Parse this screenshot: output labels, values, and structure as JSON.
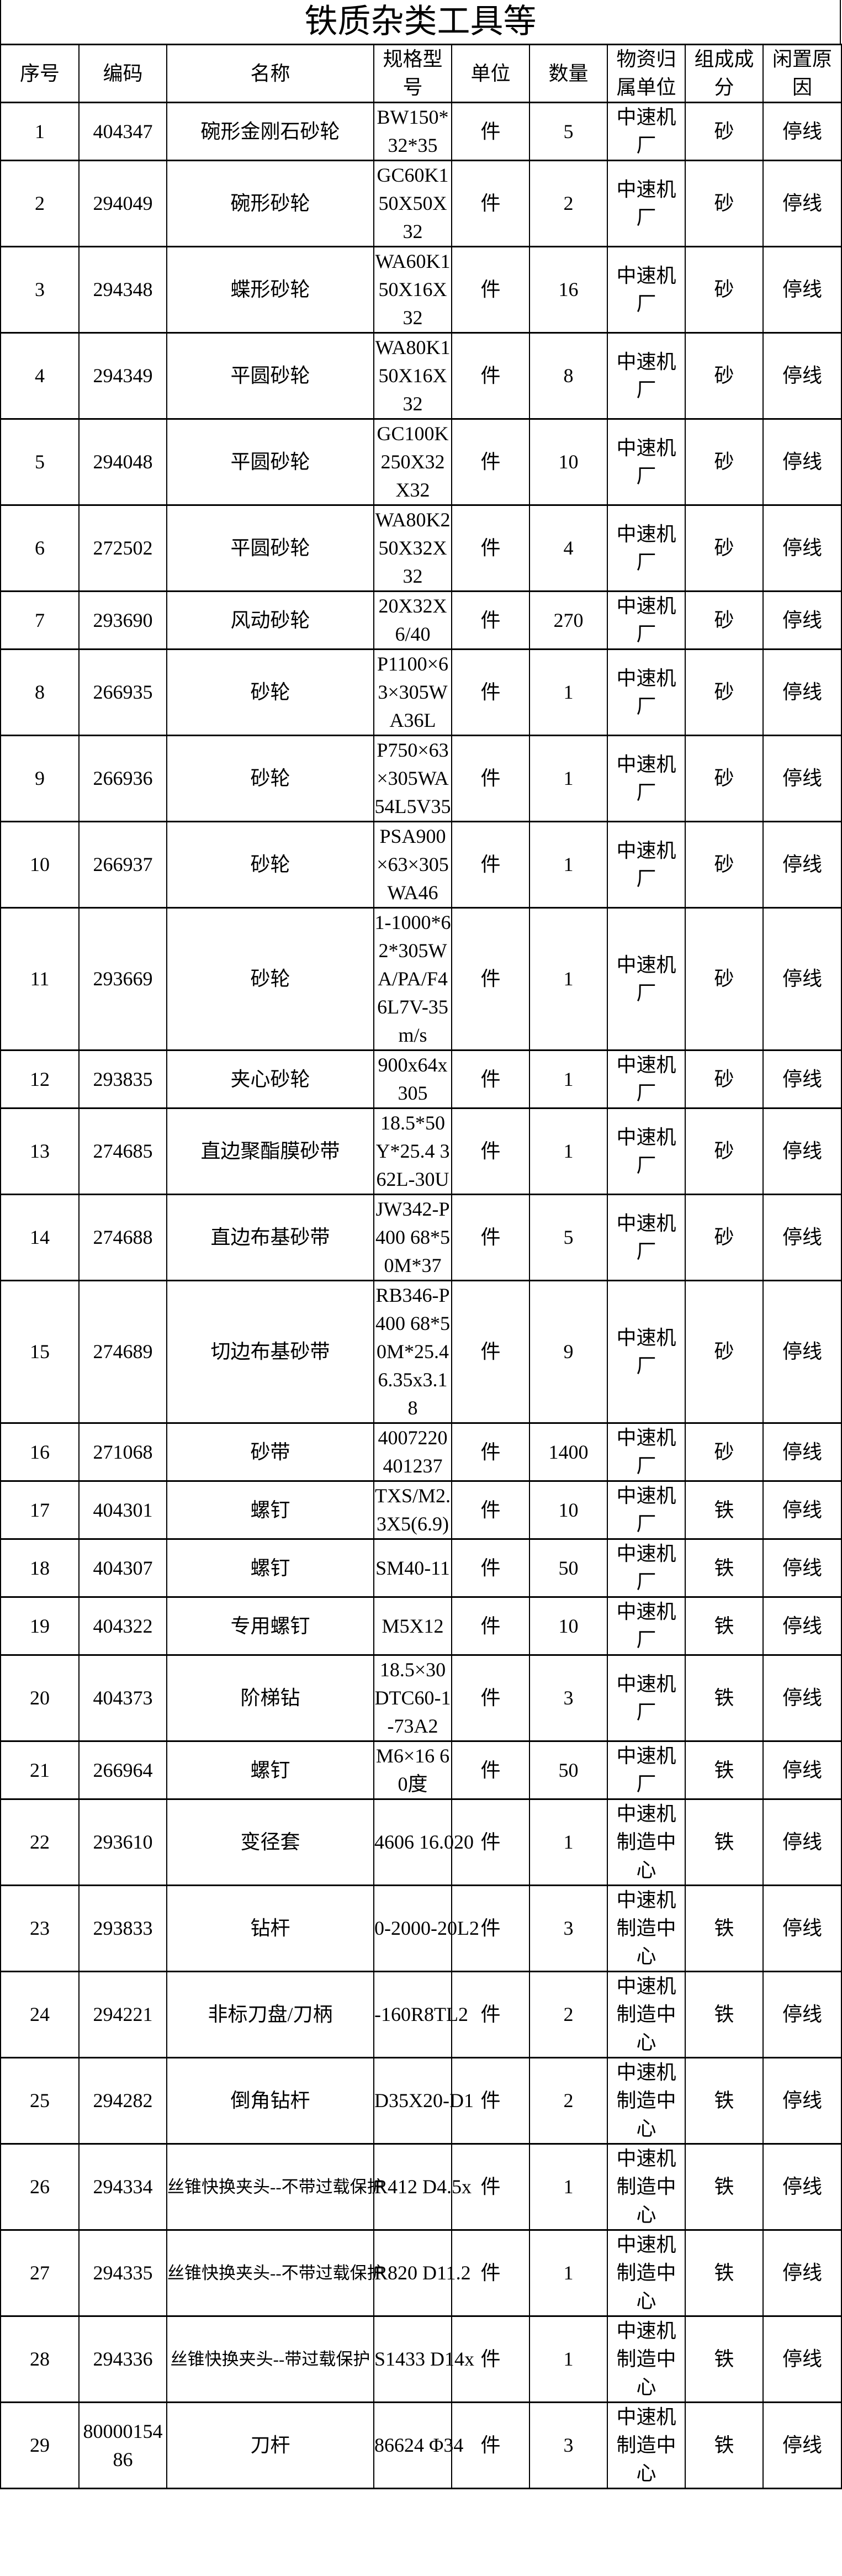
{
  "title": "铁质杂类工具等",
  "headers": [
    "序号",
    "编码",
    "名称",
    "规格型号",
    "单位",
    "数量",
    "物资归属单位",
    "组成成分",
    "闲置原因"
  ],
  "rows": [
    {
      "no": "1",
      "code": "404347",
      "name": "碗形金刚石砂轮",
      "spec": "BW150*32*35",
      "unit": "件",
      "qty": "5",
      "dept": "中速机厂",
      "material": "砂",
      "reason": "停线"
    },
    {
      "no": "2",
      "code": "294049",
      "name": "碗形砂轮",
      "spec": "GC60K150X50X32",
      "unit": "件",
      "qty": "2",
      "dept": "中速机厂",
      "material": "砂",
      "reason": "停线"
    },
    {
      "no": "3",
      "code": "294348",
      "name": "蝶形砂轮",
      "spec": "WA60K150X16X32",
      "unit": "件",
      "qty": "16",
      "dept": "中速机厂",
      "material": "砂",
      "reason": "停线"
    },
    {
      "no": "4",
      "code": "294349",
      "name": "平圆砂轮",
      "spec": "WA80K150X16X32",
      "unit": "件",
      "qty": "8",
      "dept": "中速机厂",
      "material": "砂",
      "reason": "停线"
    },
    {
      "no": "5",
      "code": "294048",
      "name": "平圆砂轮",
      "spec": "GC100K250X32X32",
      "unit": "件",
      "qty": "10",
      "dept": "中速机厂",
      "material": "砂",
      "reason": "停线"
    },
    {
      "no": "6",
      "code": "272502",
      "name": "平圆砂轮",
      "spec": "WA80K250X32X32",
      "unit": "件",
      "qty": "4",
      "dept": "中速机厂",
      "material": "砂",
      "reason": "停线"
    },
    {
      "no": "7",
      "code": "293690",
      "name": "风动砂轮",
      "spec": "20X32X6/40",
      "unit": "件",
      "qty": "270",
      "dept": "中速机厂",
      "material": "砂",
      "reason": "停线"
    },
    {
      "no": "8",
      "code": "266935",
      "name": "砂轮",
      "spec": "P1100×63×305WA36L",
      "unit": "件",
      "qty": "1",
      "dept": "中速机厂",
      "material": "砂",
      "reason": "停线"
    },
    {
      "no": "9",
      "code": "266936",
      "name": "砂轮",
      "spec": "P750×63×305WA54L5V35",
      "unit": "件",
      "qty": "1",
      "dept": "中速机厂",
      "material": "砂",
      "reason": "停线"
    },
    {
      "no": "10",
      "code": "266937",
      "name": "砂轮",
      "spec": "PSA900×63×305WA46",
      "unit": "件",
      "qty": "1",
      "dept": "中速机厂",
      "material": "砂",
      "reason": "停线"
    },
    {
      "no": "11",
      "code": "293669",
      "name": "砂轮",
      "spec": "1-1000*62*305WA/PA/F46L7V-35m/s",
      "unit": "件",
      "qty": "1",
      "dept": "中速机厂",
      "material": "砂",
      "reason": "停线"
    },
    {
      "no": "12",
      "code": "293835",
      "name": "夹心砂轮",
      "spec": "900x64x305",
      "unit": "件",
      "qty": "1",
      "dept": "中速机厂",
      "material": "砂",
      "reason": "停线"
    },
    {
      "no": "13",
      "code": "274685",
      "name": "直边聚酯膜砂带",
      "spec": "18.5*50Y*25.4 362L-30U",
      "unit": "件",
      "qty": "1",
      "dept": "中速机厂",
      "material": "砂",
      "reason": "停线"
    },
    {
      "no": "14",
      "code": "274688",
      "name": "直边布基砂带",
      "spec": "JW342-P400 68*50M*37",
      "unit": "件",
      "qty": "5",
      "dept": "中速机厂",
      "material": "砂",
      "reason": "停线"
    },
    {
      "no": "15",
      "code": "274689",
      "name": "切边布基砂带",
      "spec": "RB346-P400 68*50M*25.4 6.35x3.18",
      "unit": "件",
      "qty": "9",
      "dept": "中速机厂",
      "material": "砂",
      "reason": "停线"
    },
    {
      "no": "16",
      "code": "271068",
      "name": "砂带",
      "spec": "4007220401237",
      "unit": "件",
      "qty": "1400",
      "dept": "中速机厂",
      "material": "砂",
      "reason": "停线"
    },
    {
      "no": "17",
      "code": "404301",
      "name": "螺钉",
      "spec": "TXS/M2.3X5(6.9)",
      "unit": "件",
      "qty": "10",
      "dept": "中速机厂",
      "material": "铁",
      "reason": "停线"
    },
    {
      "no": "18",
      "code": "404307",
      "name": "螺钉",
      "spec": "SM40-11",
      "unit": "件",
      "qty": "50",
      "dept": "中速机厂",
      "material": "铁",
      "reason": "停线"
    },
    {
      "no": "19",
      "code": "404322",
      "name": "专用螺钉",
      "spec": "M5X12",
      "unit": "件",
      "qty": "10",
      "dept": "中速机厂",
      "material": "铁",
      "reason": "停线"
    },
    {
      "no": "20",
      "code": "404373",
      "name": "阶梯钻",
      "spec": "18.5×30 DTC60-1-73A2",
      "unit": "件",
      "qty": "3",
      "dept": "中速机厂",
      "material": "铁",
      "reason": "停线"
    },
    {
      "no": "21",
      "code": "266964",
      "name": "螺钉",
      "spec": "M6×16 60度",
      "unit": "件",
      "qty": "50",
      "dept": "中速机厂",
      "material": "铁",
      "reason": "停线"
    },
    {
      "no": "22",
      "code": "293610",
      "name": "变径套",
      "spec": "4606  16.020",
      "unit": "件",
      "qty": "1",
      "dept": "中速机制造中心",
      "material": "铁",
      "reason": "停线",
      "clip": true
    },
    {
      "no": "23",
      "code": "293833",
      "name": "钻杆",
      "spec": "0-2000-20L2",
      "unit": "件",
      "qty": "3",
      "dept": "中速机制造中心",
      "material": "铁",
      "reason": "停线",
      "clip": true
    },
    {
      "no": "24",
      "code": "294221",
      "name": "非标刀盘/刀柄",
      "spec": "-160R8TL2",
      "unit": "件",
      "qty": "2",
      "dept": "中速机制造中心",
      "material": "铁",
      "reason": "停线",
      "clip": true
    },
    {
      "no": "25",
      "code": "294282",
      "name": "倒角钻杆",
      "spec": "D35X20-D1",
      "unit": "件",
      "qty": "2",
      "dept": "中速机制造中心",
      "material": "铁",
      "reason": "停线",
      "clip": true
    },
    {
      "no": "26",
      "code": "294334",
      "name": "丝锥快换夹头--不带过载保护",
      "spec": "R412 D4.5x",
      "unit": "件",
      "qty": "1",
      "dept": "中速机制造中心",
      "material": "铁",
      "reason": "停线",
      "clip": true
    },
    {
      "no": "27",
      "code": "294335",
      "name": "丝锥快换夹头--不带过载保护",
      "spec": "R820 D11.2",
      "unit": "件",
      "qty": "1",
      "dept": "中速机制造中心",
      "material": "铁",
      "reason": "停线",
      "clip": true
    },
    {
      "no": "28",
      "code": "294336",
      "name": "丝锥快换夹头--带过载保护",
      "spec": "S1433 D14x",
      "unit": "件",
      "qty": "1",
      "dept": "中速机制造中心",
      "material": "铁",
      "reason": "停线",
      "clip": true
    },
    {
      "no": "29",
      "code": "8000015486",
      "name": "刀杆",
      "spec": "86624  Φ34",
      "unit": "件",
      "qty": "3",
      "dept": "中速机制造中心",
      "material": "铁",
      "reason": "停线",
      "clip": true
    }
  ]
}
